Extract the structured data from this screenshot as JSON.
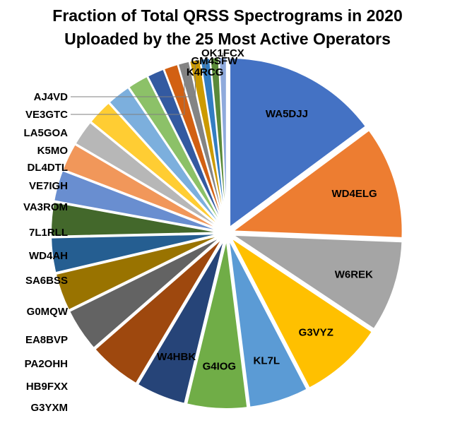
{
  "chart_data": {
    "type": "pie",
    "title_lines": [
      "Fraction of Total QRSS Spectrograms in 2020",
      "Uploaded by  the 25 Most Active Operators"
    ],
    "start_angle_deg": 0,
    "direction": "clockwise",
    "labels": [
      "WA5DJJ",
      "WD4ELG",
      "W6REK",
      "G3VYZ",
      "KL7L",
      "G4IOG",
      "W4HBK",
      "G3YXM",
      "HB9FXX",
      "PA2OHH",
      "EA8BVP",
      "G0MQW",
      "SA6BSS",
      "WD4AH",
      "7L1RLL",
      "VA3ROM",
      "VE7IGH",
      "DL4DTL",
      "K5MO",
      "LA5GOA",
      "VE3GTC",
      "AJ4VD",
      "K4RCG",
      "GM4SFW",
      "OK1FCX"
    ],
    "values": [
      16.5,
      12.0,
      9.7,
      8.9,
      6.3,
      6.4,
      5.3,
      5.6,
      4.6,
      4.0,
      3.7,
      3.6,
      3.3,
      2.9,
      2.7,
      2.7,
      2.5,
      2.2,
      1.8,
      1.5,
      1.2,
      1.1,
      1.0,
      0.9,
      0.8
    ],
    "colors": [
      "#4472C4",
      "#ED7D31",
      "#A5A5A5",
      "#FFC000",
      "#5B9BD5",
      "#70AD47",
      "#264478",
      "#9E480E",
      "#636363",
      "#997300",
      "#255E91",
      "#43682B",
      "#698ED0",
      "#F1975A",
      "#B7B7B7",
      "#FFCD33",
      "#7CAFDD",
      "#8CC168",
      "#335AA1",
      "#D26012",
      "#848484",
      "#CC9A00",
      "#327DC2",
      "#5A8A39",
      "#8FAADC"
    ],
    "exploded": true,
    "label_placement": "inside for large slices, outside with leader lines for small slices"
  }
}
